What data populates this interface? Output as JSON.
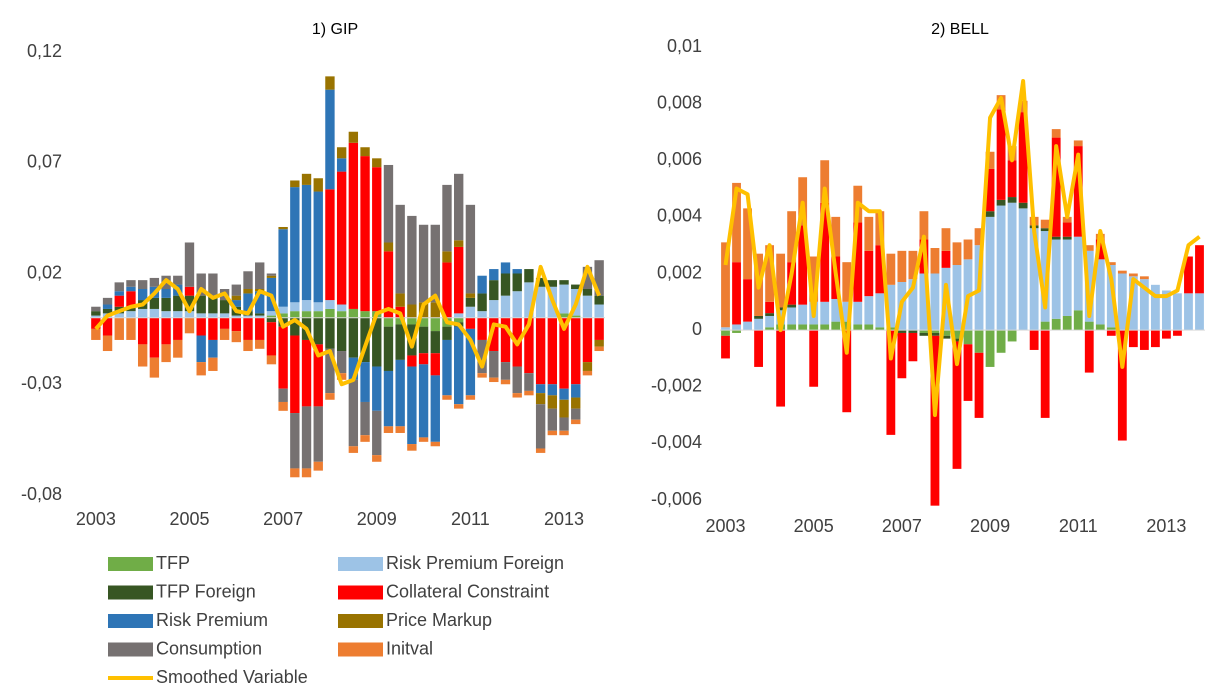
{
  "chart_data": [
    {
      "type": "bar",
      "stacked": true,
      "title": "1) GIP",
      "categories": [
        "2003",
        null,
        null,
        null,
        null,
        null,
        null,
        null,
        "2005",
        null,
        null,
        null,
        null,
        null,
        null,
        null,
        "2007",
        null,
        null,
        null,
        null,
        null,
        null,
        null,
        "2009",
        null,
        null,
        null,
        null,
        null,
        null,
        null,
        "2011",
        null,
        null,
        null,
        null,
        null,
        null,
        null,
        "2013",
        null,
        null,
        null
      ],
      "ylim": [
        -0.08,
        0.12
      ],
      "yticks": [
        {
          "value": -0.08,
          "label": "-0,08"
        },
        {
          "value": -0.03,
          "label": "-0,03"
        },
        {
          "value": 0.02,
          "label": "0,02"
        },
        {
          "value": 0.07,
          "label": "0,07"
        },
        {
          "value": 0.12,
          "label": "0,12"
        }
      ],
      "series": [
        {
          "name": "TFP",
          "color": "#70ad47",
          "values": [
            0,
            0,
            0,
            0,
            0,
            0,
            0,
            0,
            0,
            0,
            0,
            0,
            0,
            0,
            0,
            0.001,
            0.002,
            0.003,
            0.003,
            0.003,
            0.004,
            0.003,
            0.004,
            0.003,
            0.003,
            -0.004,
            -0.003,
            -0.003,
            -0.004,
            -0.006,
            -0.004,
            -0.002,
            0,
            0,
            0,
            0,
            0,
            0,
            0,
            0,
            0.002,
            0.001,
            0,
            0
          ]
        },
        {
          "name": "Risk Premium Foreign",
          "color": "#9dc3e6",
          "values": [
            0.001,
            0.002,
            0.002,
            0.003,
            0.004,
            0.004,
            0.003,
            0.003,
            0.003,
            0.002,
            0.002,
            0.002,
            0.001,
            0.001,
            0.001,
            0.002,
            0.003,
            0.004,
            0.005,
            0.004,
            0.004,
            0.003,
            0,
            0,
            0,
            0,
            0,
            0,
            0,
            0,
            0,
            0.002,
            0.005,
            0.003,
            0.008,
            0.01,
            0.012,
            0.016,
            0.014,
            0.014,
            0.013,
            0.012,
            0.01,
            0.006
          ]
        },
        {
          "name": "TFP Foreign",
          "color": "#375623",
          "values": [
            0.002,
            0.002,
            0.003,
            0.002,
            0.004,
            0.005,
            0.006,
            0.007,
            0.007,
            0.008,
            0.008,
            0.006,
            0.004,
            0.002,
            0.001,
            -0.002,
            -0.004,
            -0.008,
            -0.01,
            -0.012,
            -0.014,
            -0.015,
            -0.018,
            -0.02,
            -0.022,
            -0.02,
            -0.016,
            -0.014,
            -0.012,
            -0.01,
            -0.006,
            -0.002,
            0.004,
            0.008,
            0.009,
            0.01,
            0.008,
            0.006,
            0.004,
            0.003,
            0.002,
            0.002,
            0.003,
            0.004
          ]
        },
        {
          "name": "Collateral Constraint",
          "color": "#ff0000",
          "values": [
            -0.005,
            -0.008,
            0.005,
            0.007,
            -0.012,
            -0.018,
            -0.012,
            -0.01,
            0.004,
            -0.008,
            -0.01,
            -0.005,
            -0.006,
            -0.01,
            -0.01,
            -0.015,
            -0.028,
            -0.035,
            -0.03,
            -0.028,
            0.05,
            0.06,
            0.075,
            0.07,
            0.065,
            0.03,
            0.005,
            -0.005,
            -0.005,
            -0.01,
            0.025,
            0.03,
            -0.005,
            -0.01,
            -0.015,
            -0.02,
            -0.022,
            -0.025,
            -0.03,
            -0.03,
            -0.032,
            -0.03,
            -0.02,
            -0.01
          ]
        },
        {
          "name": "Risk Premium",
          "color": "#2e75b6",
          "values": [
            0,
            0.002,
            0.002,
            0.002,
            0.005,
            0.005,
            0.004,
            0.005,
            0,
            -0.012,
            -0.008,
            0,
            0.003,
            0.008,
            0.01,
            0.015,
            0.035,
            0.052,
            0.052,
            0.05,
            0.045,
            0.006,
            -0.01,
            -0.018,
            -0.02,
            -0.025,
            -0.03,
            -0.035,
            -0.033,
            -0.03,
            -0.025,
            -0.035,
            -0.03,
            0.008,
            0.005,
            0.005,
            0.002,
            0,
            -0.004,
            -0.005,
            -0.005,
            -0.006,
            0,
            0
          ]
        },
        {
          "name": "Price Markup",
          "color": "#997300",
          "values": [
            0,
            0,
            0,
            0,
            0,
            0,
            0,
            0,
            0,
            0,
            0,
            0,
            0.002,
            0.002,
            0.001,
            0.001,
            0.001,
            0.003,
            0.005,
            0.006,
            0.006,
            0.005,
            0.005,
            0.004,
            0.004,
            0.004,
            0.006,
            0.006,
            0.007,
            0.007,
            0.005,
            0.003,
            0.002,
            0,
            0,
            0,
            0,
            0,
            -0.005,
            -0.006,
            -0.008,
            -0.005,
            -0.004,
            -0.003
          ]
        },
        {
          "name": "Consumption",
          "color": "#767171",
          "values": [
            0.002,
            0.003,
            0.004,
            0.003,
            0.004,
            0.004,
            0.006,
            0.004,
            0.02,
            0.01,
            0.01,
            0.005,
            0.005,
            0.008,
            0.012,
            0.001,
            -0.006,
            -0.025,
            -0.028,
            -0.025,
            -0.02,
            -0.01,
            -0.03,
            -0.015,
            -0.02,
            0.035,
            0.04,
            0.04,
            0.035,
            0.035,
            0.03,
            0.03,
            0.04,
            -0.015,
            -0.012,
            -0.008,
            -0.012,
            -0.008,
            -0.02,
            -0.01,
            -0.006,
            -0.005,
            0.01,
            0.016
          ]
        },
        {
          "name": "Initval",
          "color": "#ed7d31",
          "values": [
            -0.005,
            -0.007,
            -0.01,
            -0.01,
            -0.01,
            -0.009,
            -0.008,
            -0.008,
            -0.007,
            -0.006,
            -0.006,
            -0.005,
            -0.005,
            -0.005,
            -0.004,
            -0.004,
            -0.004,
            -0.004,
            -0.004,
            -0.004,
            -0.003,
            -0.003,
            -0.003,
            -0.003,
            -0.003,
            -0.003,
            -0.003,
            -0.003,
            -0.002,
            -0.002,
            -0.002,
            -0.002,
            -0.002,
            -0.002,
            -0.002,
            -0.002,
            -0.002,
            -0.002,
            -0.002,
            -0.002,
            -0.002,
            -0.002,
            -0.002,
            -0.002
          ]
        },
        {
          "name": "Smoothed Variable",
          "type": "line",
          "color": "#ffc000",
          "values": [
            -0.005,
            0.001,
            0.003,
            0.005,
            0.006,
            0.011,
            0.017,
            0.013,
            0.003,
            0.013,
            0.009,
            0.011,
            0.003,
            0.002,
            0.012,
            0.01,
            -0.004,
            -0.001,
            -0.005,
            -0.017,
            -0.015,
            -0.03,
            -0.028,
            -0.013,
            0.002,
            0.004,
            0.002,
            -0.013,
            0.006,
            0.01,
            -0.002,
            -0.003,
            -0.01,
            -0.022,
            -0.003,
            -0.004,
            -0.012,
            -0.003,
            0.023,
            0.008,
            -0.005,
            0.006,
            0.023,
            0.01
          ]
        }
      ]
    },
    {
      "type": "bar",
      "stacked": true,
      "title": "2) BELL",
      "categories": [
        "2003",
        null,
        null,
        null,
        null,
        null,
        null,
        null,
        "2005",
        null,
        null,
        null,
        null,
        null,
        null,
        null,
        "2007",
        null,
        null,
        null,
        null,
        null,
        null,
        null,
        "2009",
        null,
        null,
        null,
        null,
        null,
        null,
        null,
        "2011",
        null,
        null,
        null,
        null,
        null,
        null,
        null,
        "2013",
        null,
        null,
        null
      ],
      "ylim": [
        -0.006,
        0.01
      ],
      "yticks": [
        {
          "value": -0.006,
          "label": "-0,006"
        },
        {
          "value": -0.004,
          "label": "-0,004"
        },
        {
          "value": -0.002,
          "label": "-0,002"
        },
        0,
        {
          "value": 0.002,
          "label": "0,002"
        },
        {
          "value": 0.004,
          "label": "0,004"
        },
        {
          "value": 0.006,
          "label": "0,006"
        },
        {
          "value": 0.008,
          "label": "0,008"
        },
        {
          "value": 0.01,
          "label": "0,01"
        }
      ],
      "series": [
        {
          "color": "#70ad47",
          "values": [
            -0.0002,
            -0.0001,
            0,
            0,
            0.0001,
            0.0002,
            0.0002,
            0.0002,
            0.0002,
            0.0002,
            0.0003,
            0.0003,
            0.0002,
            0.0002,
            0.0001,
            0.0001,
            0,
            0,
            -0.0001,
            -0.0001,
            -0.0002,
            -0.0003,
            -0.0005,
            -0.0008,
            -0.0013,
            -0.0008,
            -0.0004,
            0,
            0,
            0.0003,
            0.0004,
            0.0005,
            0.0007,
            0.0003,
            0.0002,
            0.0001,
            0,
            0,
            0,
            0,
            0,
            0,
            0,
            0
          ]
        },
        {
          "color": "#9dc3e6",
          "values": [
            0.0001,
            0.0002,
            0.0003,
            0.0004,
            0.0004,
            0.0005,
            0.0006,
            0.0007,
            0.0008,
            0.0008,
            0.0008,
            0.0007,
            0.0008,
            0.001,
            0.0012,
            0.0015,
            0.0017,
            0.0018,
            0.002,
            0.002,
            0.0022,
            0.0023,
            0.0025,
            0.003,
            0.004,
            0.0044,
            0.0045,
            0.0043,
            0.0036,
            0.0032,
            0.0028,
            0.0027,
            0.0026,
            0.0025,
            0.0023,
            0.0022,
            0.002,
            0.0019,
            0.0018,
            0.0016,
            0.0014,
            0.0013,
            0.0013,
            0.0013
          ]
        },
        {
          "color": "#375623",
          "values": [
            0,
            0,
            0,
            0.0001,
            0.0001,
            0.0001,
            0.0001,
            0,
            0,
            0,
            0,
            0,
            0,
            0,
            0,
            0,
            -0.0001,
            -0.0001,
            -0.0001,
            -0.0001,
            -0.0001,
            -0.0001,
            0,
            0,
            0.0002,
            0.0002,
            0.0002,
            0.0002,
            0.0001,
            0.0001,
            0.0001,
            0.0001,
            0,
            0,
            0,
            0,
            0,
            0,
            0,
            0,
            0,
            0,
            0,
            0
          ]
        },
        {
          "color": "#ff0000",
          "values": [
            -0.0008,
            0.0022,
            0.0015,
            -0.0013,
            0.0004,
            -0.0027,
            0.0015,
            0.0028,
            -0.002,
            0.0035,
            0.0015,
            -0.0029,
            0.0028,
            0.0016,
            0.0017,
            -0.0037,
            -0.0016,
            -0.001,
            0.0012,
            -0.006,
            0.0006,
            -0.0045,
            -0.002,
            -0.0023,
            0.0015,
            0.0032,
            0.0013,
            0.0032,
            -0.0007,
            -0.0031,
            0.0035,
            0.0005,
            0.0032,
            -0.0015,
            0.0007,
            -0.0002,
            -0.0039,
            -0.0006,
            -0.0007,
            -0.0006,
            -0.0003,
            -0.0002,
            0.0013,
            0.0017
          ]
        },
        {
          "color": "#2e75b6",
          "values": [
            0,
            0,
            0,
            0,
            0,
            0,
            0,
            0,
            0,
            0,
            0,
            0,
            0,
            0,
            0,
            0,
            0,
            0,
            0,
            0,
            0,
            0,
            0,
            0,
            0,
            0,
            0,
            0,
            0,
            0,
            0,
            0,
            0,
            0,
            0,
            0,
            0,
            0,
            0,
            0,
            0,
            0,
            0,
            0
          ]
        },
        {
          "color": "#997300",
          "values": [
            0,
            0,
            0,
            0,
            0,
            0,
            0,
            0,
            0,
            0,
            0,
            0,
            0,
            0,
            0,
            0,
            0,
            0,
            0,
            0,
            0,
            0,
            0,
            0,
            0,
            0,
            0,
            0,
            0,
            0,
            0,
            0,
            0,
            0,
            0,
            0,
            0,
            0,
            0,
            0,
            0,
            0,
            0,
            0
          ]
        },
        {
          "color": "#767171",
          "values": [
            0,
            0,
            0,
            0,
            0,
            0,
            0,
            0,
            0,
            0,
            0,
            0,
            0,
            0,
            0,
            0,
            0,
            0,
            0,
            0,
            0,
            0,
            0,
            0,
            0,
            0,
            0,
            0,
            0,
            0,
            0,
            0,
            0,
            0,
            0,
            0,
            0,
            0,
            0,
            0,
            0,
            0,
            0,
            0
          ]
        },
        {
          "color": "#ed7d31",
          "values": [
            0.003,
            0.0028,
            0.0025,
            0.0022,
            0.002,
            0.0019,
            0.0018,
            0.0017,
            0.0016,
            0.0015,
            0.0014,
            0.0014,
            0.0013,
            0.0012,
            0.0012,
            0.0011,
            0.0011,
            0.001,
            0.001,
            0.0009,
            0.0008,
            0.0008,
            0.0007,
            0.0006,
            0.0006,
            0.0005,
            0.0005,
            0.0004,
            0.0003,
            0.0003,
            0.0003,
            0.0002,
            0.0002,
            0.0002,
            0.0002,
            0.0001,
            0.0001,
            0.0001,
            0.0001,
            0,
            0,
            0,
            0,
            0
          ]
        },
        {
          "type": "line",
          "color": "#ffc000",
          "values": [
            0.0023,
            0.005,
            0.0048,
            0.0015,
            0.003,
            0,
            0.002,
            0.0045,
            0.0005,
            0.005,
            0.002,
            -0.0008,
            0.0045,
            0.0042,
            0.0042,
            -0.001,
            0.001,
            0.0015,
            0.0033,
            -0.003,
            0.0016,
            -0.0012,
            0.0012,
            0.0014,
            0.0075,
            0.0082,
            0.006,
            0.0088,
            0.0035,
            0.0008,
            0.0065,
            0.004,
            0.0062,
            0.0005,
            0.0035,
            0.0018,
            -0.0013,
            0.0018,
            0.0015,
            0.0012,
            0.0012,
            0.0014,
            0.003,
            0.0033
          ]
        }
      ]
    }
  ]
}
